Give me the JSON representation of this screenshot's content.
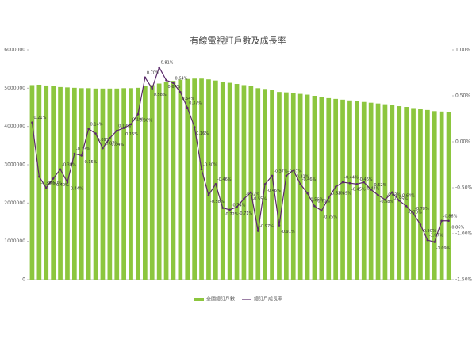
{
  "chart_data": {
    "type": "bar-line",
    "title": "有線電視訂戶數及成長率",
    "categories": [
      null,
      null,
      null,
      null,
      null,
      null,
      null,
      null,
      null,
      null,
      null,
      null,
      null,
      null,
      null,
      null,
      null,
      null,
      null,
      null,
      null,
      null,
      null,
      null,
      null,
      null,
      null,
      null,
      null,
      null,
      null,
      null,
      null,
      null,
      null,
      null,
      null,
      null,
      null,
      null,
      null,
      null,
      null,
      null,
      null,
      null,
      null,
      null,
      null,
      null,
      null,
      null,
      null,
      null,
      null,
      null,
      null,
      null,
      null,
      null
    ],
    "series": [
      {
        "name": "全國總訂戶數",
        "color": "#8cc63e",
        "values": [
          5080000,
          5090000,
          5070000,
          5050000,
          5030000,
          5020000,
          5010000,
          5000000,
          5000000,
          4990000,
          4990000,
          4990000,
          4990000,
          5000000,
          5000000,
          5010000,
          5050000,
          5080000,
          5120000,
          5160000,
          5190000,
          5220000,
          5240000,
          5250000,
          5250000,
          5230000,
          5200000,
          5170000,
          5140000,
          5110000,
          5080000,
          5050000,
          5000000,
          4980000,
          4950000,
          4900000,
          4890000,
          4870000,
          4850000,
          4830000,
          4800000,
          4770000,
          4740000,
          4720000,
          4700000,
          4680000,
          4660000,
          4640000,
          4620000,
          4600000,
          4580000,
          4560000,
          4530000,
          4510000,
          4480000,
          4460000,
          4430000,
          4400000,
          4390000,
          4380000
        ]
      },
      {
        "name": "總訂戶成長率",
        "color": "#5a2a6a",
        "axis": "y2",
        "values": [
          0.21,
          -0.38,
          -0.5,
          -0.4,
          -0.3,
          -0.44,
          -0.13,
          -0.15,
          0.14,
          0.09,
          -0.07,
          0.04,
          0.12,
          0.15,
          0.19,
          0.3,
          0.7,
          0.58,
          0.81,
          0.67,
          0.64,
          0.54,
          0.37,
          0.16,
          -0.3,
          -0.58,
          -0.46,
          -0.72,
          -0.74,
          -0.71,
          -0.62,
          -0.55,
          -0.97,
          -0.46,
          -0.37,
          -0.91,
          -0.37,
          -0.31,
          -0.46,
          -0.56,
          -0.7,
          -0.75,
          -0.61,
          -0.49,
          -0.44,
          -0.45,
          -0.46,
          -0.44,
          -0.52,
          -0.58,
          -0.63,
          -0.55,
          -0.64,
          -0.7,
          -0.78,
          -0.9,
          -1.07,
          -1.09,
          -0.86,
          -0.86
        ],
        "value_labels": [
          "0.21%",
          "-0.38%",
          "-0.50%",
          "-0.40%",
          "-0.30%",
          "-0.44%",
          "-0.13%",
          "-0.15%",
          "0.14%",
          "0.09%",
          "-0.07%",
          "0.04%",
          "0.12%",
          "0.15%",
          "0.19%",
          "0.30%",
          "0.70%",
          "0.58%",
          "0.81%",
          "0.67%",
          "0.64%",
          "0.54%",
          "0.37%",
          "0.16%",
          "-0.30%",
          "-0.58%",
          "-0.46%",
          "-0.72%",
          "-0.74%",
          "-0.71%",
          "-0.62%",
          "-0.55%",
          "-0.97%",
          "-0.46%",
          "-0.37%",
          "-0.91%",
          "-0.37%",
          "-0.31%",
          "-0.46%",
          "-0.56%",
          "-0.70%",
          "-0.75%",
          "-0.61%",
          "-0.49%",
          "-0.44%",
          "-0.45%",
          "-0.46%",
          "-0.44%",
          "-0.52%",
          "-0.58%",
          "-0.63%",
          "-0.55%",
          "-0.64%",
          "-0.70%",
          "-0.78%",
          "-0.90%",
          "-1.07%",
          "-1.09%",
          "-0.86%",
          "-0.86%"
        ]
      }
    ],
    "ylim": [
      0,
      6000000
    ],
    "yticks": [
      0,
      1000000,
      2000000,
      3000000,
      4000000,
      5000000,
      6000000
    ],
    "y2lim": [
      -1.5,
      1
    ],
    "y2ticks": [
      {
        "value": -1.5,
        "label": "-1.50%"
      },
      {
        "value": -1,
        "label": "-1.00%"
      },
      {
        "value": -0.5,
        "label": "-0.50%"
      },
      {
        "value": 0,
        "label": "0.00%"
      },
      {
        "value": 0.5,
        "label": "0.50%"
      },
      {
        "value": 1,
        "label": "1.00%"
      }
    ],
    "legend": "bottom"
  }
}
